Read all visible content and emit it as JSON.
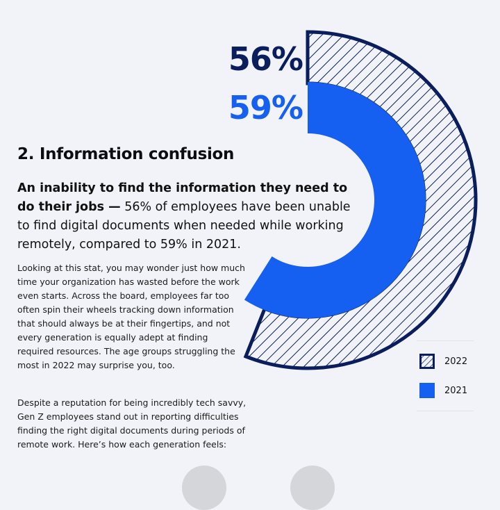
{
  "chart_data": {
    "type": "pie",
    "series": [
      {
        "name": "2022",
        "value": 56,
        "label": "56%",
        "style": "hatched",
        "color": "#0a1e5e"
      },
      {
        "name": "2021",
        "value": 59,
        "label": "59%",
        "style": "solid",
        "color": "#1560f0"
      }
    ],
    "legend": {
      "position": "bottom-right",
      "entries": [
        "2022",
        "2021"
      ]
    }
  },
  "article": {
    "title": "2. Information confusion",
    "lead_bold": "An inability to find the information they need to do their jobs —",
    "lead_rest": " 56% of employees have been unable to find digital documents when needed while working remotely, compared to 59% in 2021.",
    "para1": "Looking at this stat, you may wonder just how much time your organization has wasted before the work even starts. Across the board, employees far too often spin their wheels tracking down information that should always be at their fingertips, and not every generation is equally adept at finding required resources. The age groups struggling the most in 2022 may surprise you, too.",
    "para2": "Despite a reputation for being incredibly tech savvy, Gen Z employees stand out in reporting difficulties finding the right digital documents during periods of remote work. Here’s how each generation feels:"
  },
  "colors": {
    "dark_navy": "#0a1e5e",
    "bright_blue": "#1560f0",
    "background": "#f2f3f8"
  }
}
